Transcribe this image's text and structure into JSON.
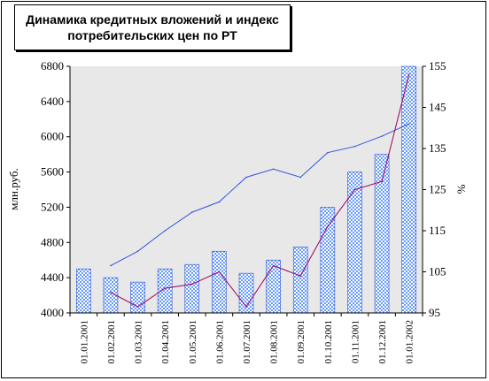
{
  "chart_data": {
    "type": "bar+line",
    "title_lines": [
      "Динамика кредитных вложений и индекс",
      "потребительских цен по РТ"
    ],
    "categories": [
      "01.01.2001",
      "01.02.2001",
      "01.03.2001",
      "01.04.2001",
      "01.05.2001",
      "01.06.2001",
      "01.07.2001",
      "01.08.2001",
      "01.09.2001",
      "01.10.2001",
      "01.11.2001",
      "01.12.2001",
      "01.01.2002"
    ],
    "left_axis": {
      "label": "млн.руб.",
      "min": 4000,
      "max": 6800,
      "ticks": [
        "4000",
        "4400",
        "4800",
        "5200",
        "5600",
        "6000",
        "6400",
        "6800"
      ]
    },
    "right_axis": {
      "label": "%",
      "min": 95,
      "max": 155,
      "ticks": [
        "95",
        "105",
        "115",
        "125",
        "135",
        "145",
        "155"
      ]
    },
    "series": [
      {
        "axis": "left",
        "kind": "bar",
        "color": "#6699ff",
        "values": [
          4500,
          4400,
          4350,
          4500,
          4550,
          4700,
          4450,
          4600,
          4750,
          5200,
          5600,
          5800,
          6800
        ]
      },
      {
        "axis": "right",
        "kind": "line",
        "color": "#3355dd",
        "values": [
          null,
          106.5,
          110,
          115,
          119.5,
          122,
          128,
          130,
          128,
          134,
          135.5,
          138,
          141
        ]
      },
      {
        "axis": "right",
        "kind": "line",
        "color": "#990066",
        "values": [
          null,
          100,
          96.5,
          101,
          102,
          105,
          96.5,
          106.5,
          104,
          116,
          125,
          127,
          153
        ]
      }
    ],
    "grid": false,
    "plot_background": "#e8e8e8"
  }
}
